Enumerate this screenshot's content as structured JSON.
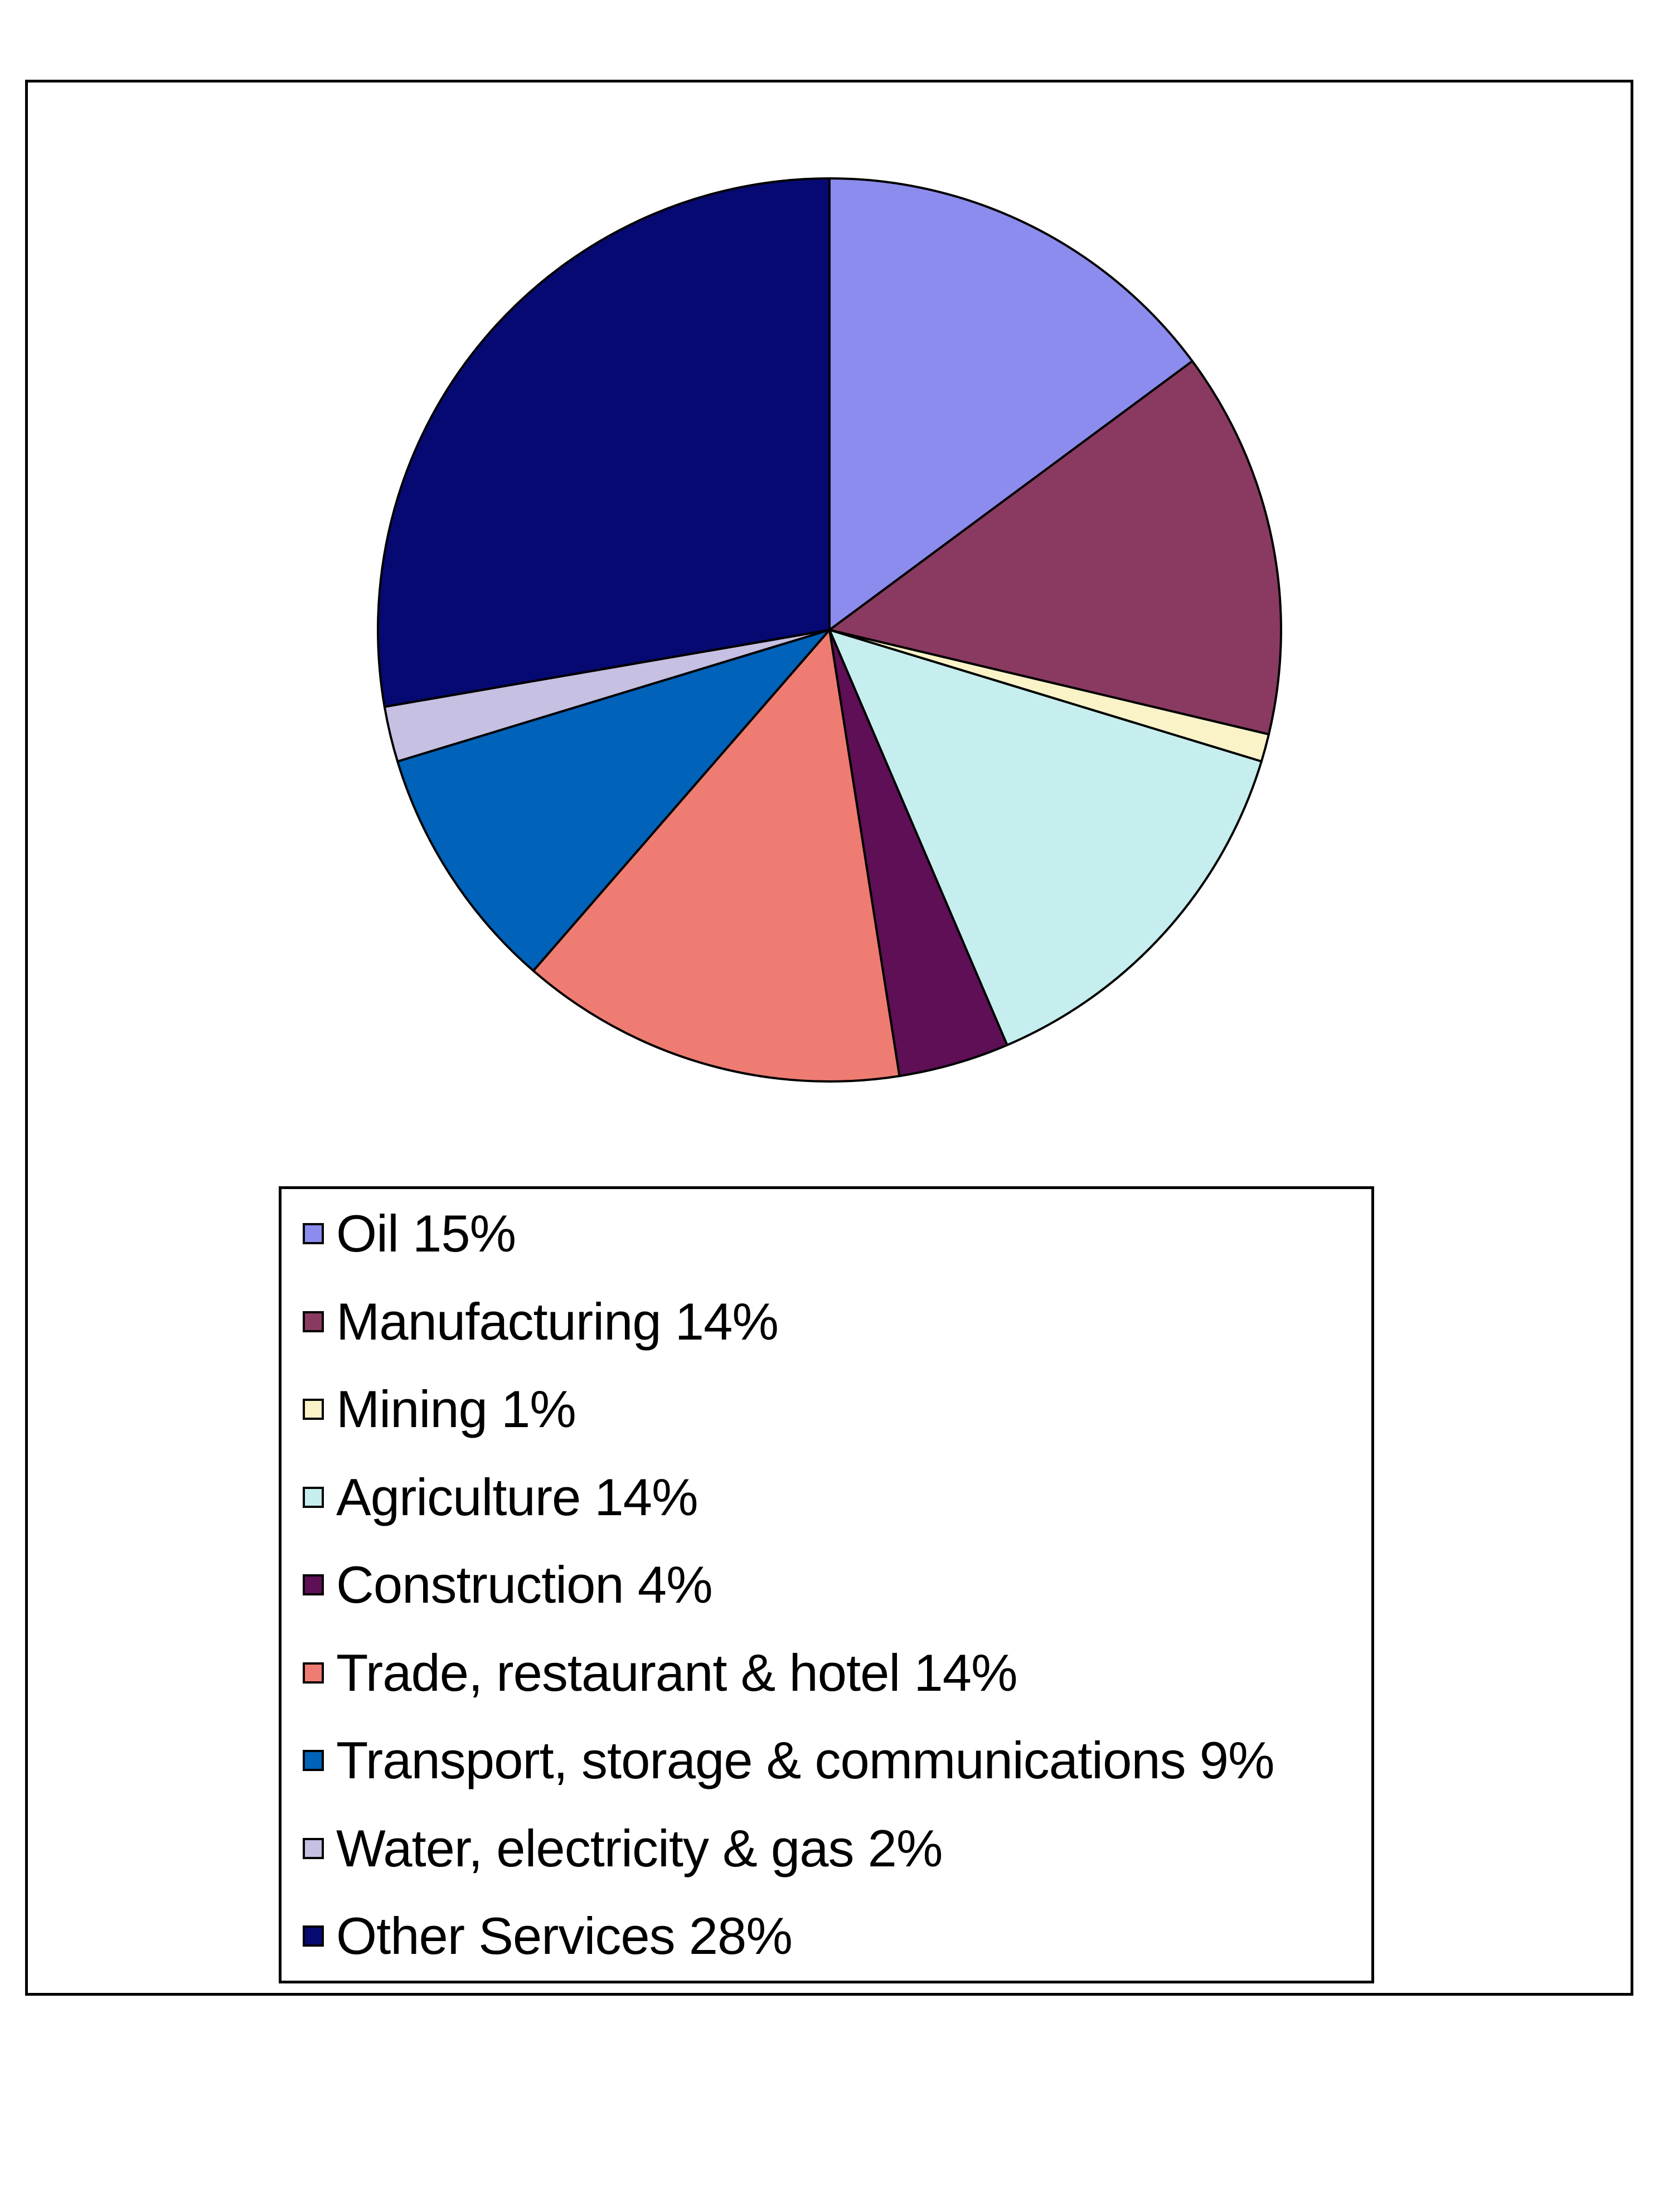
{
  "chart_data": {
    "type": "pie",
    "title": "",
    "slices": [
      {
        "label": "Oil 15%",
        "name": "Oil",
        "value": 15,
        "color": "#8C8CEE"
      },
      {
        "label": "Manufacturing 14%",
        "name": "Manufacturing",
        "value": 14,
        "color": "#8A3A60"
      },
      {
        "label": "Mining 1%",
        "name": "Mining",
        "value": 1,
        "color": "#FAF3C8"
      },
      {
        "label": "Agriculture 14%",
        "name": "Agriculture",
        "value": 14,
        "color": "#C6EEEE"
      },
      {
        "label": "Construction 4%",
        "name": "Construction",
        "value": 4,
        "color": "#5E0F55"
      },
      {
        "label": "Trade, restaurant & hotel 14%",
        "name": "Trade, restaurant & hotel",
        "value": 14,
        "color": "#EE7C72"
      },
      {
        "label": "Transport, storage & communications 9%",
        "name": "Transport, storage & communications",
        "value": 9,
        "color": "#0062B8"
      },
      {
        "label": "Water, electricity & gas 2%",
        "name": "Water, electricity & gas",
        "value": 2,
        "color": "#C6C0E2"
      },
      {
        "label": "Other Services 28%",
        "name": "Other Services",
        "value": 28,
        "color": "#070972"
      }
    ],
    "legend_position": "bottom",
    "start_angle": "12 o'clock",
    "direction": "clockwise"
  }
}
